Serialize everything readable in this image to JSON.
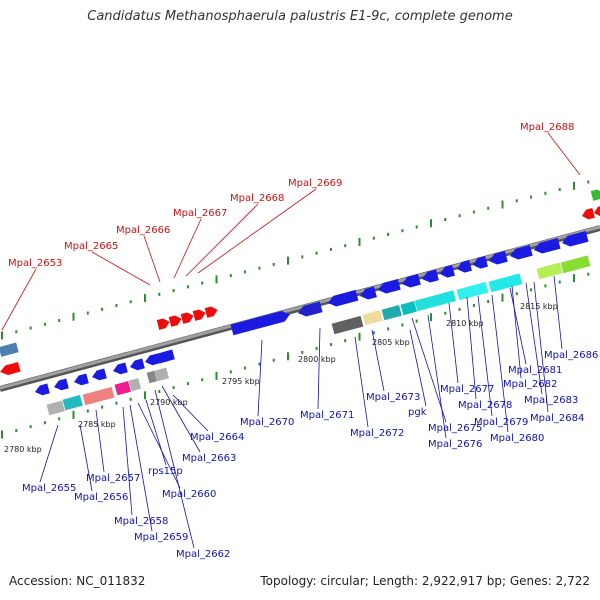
{
  "title": "Candidatus Methanosphaerula palustris E1-9c, complete genome",
  "footer": {
    "accession": "Accession: NC_011832",
    "topology": "Topology: circular; Length: 2,922,917 bp; Genes: 2,722"
  },
  "colors": {
    "ticks": "#2e8b2e",
    "backbone": "#8a8a8a",
    "gene_label": "#1010c0",
    "highlight_label": "#d01010",
    "forward_gene": "#1a1ae0",
    "highlight_gene": "#ee0d0d"
  },
  "scale_labels": [
    "2780 kbp",
    "2785 kbp",
    "2790 kbp",
    "2795 kbp",
    "2800 kbp",
    "2805 kbp",
    "2810 kbp",
    "2815 kbp"
  ],
  "highlight_labels": [
    "Mpal_2653",
    "Mpal_2665",
    "Mpal_2666",
    "Mpal_2667",
    "Mpal_2668",
    "Mpal_2669",
    "Mpal_2688"
  ],
  "gene_labels": [
    "Mpal_2655",
    "Mpal_2656",
    "Mpal_2657",
    "Mpal_2658",
    "Mpal_2659",
    "Mpal_2660",
    "rps15p",
    "Mpal_2662",
    "Mpal_2663",
    "Mpal_2664",
    "Mpal_2670",
    "Mpal_2671",
    "Mpal_2672",
    "Mpal_2673",
    "pgk",
    "Mpal_2675",
    "Mpal_2676",
    "Mpal_2677",
    "Mpal_2678",
    "Mpal_2679",
    "Mpal_2680",
    "Mpal_2681",
    "Mpal_2682",
    "Mpal_2683",
    "Mpal_2684",
    "Mpal_2686"
  ]
}
